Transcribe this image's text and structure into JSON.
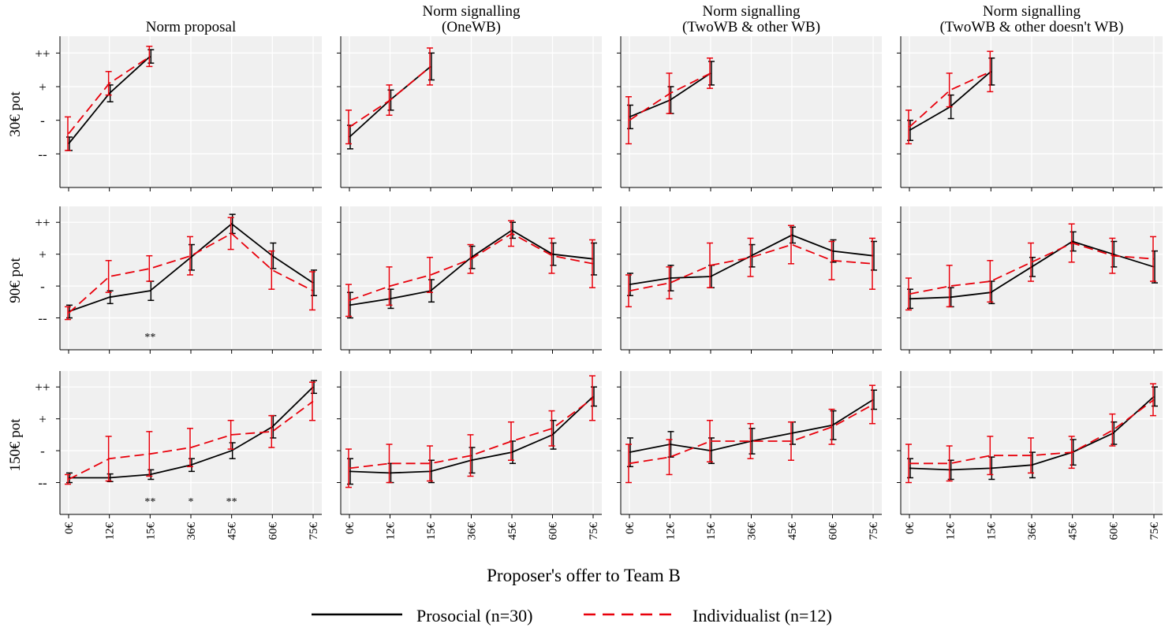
{
  "chart_data": {
    "type": "line",
    "x_categories": [
      "0€",
      "12€",
      "15€",
      "36€",
      "45€",
      "60€",
      "75€"
    ],
    "y_tick_labels": [
      "--",
      "-",
      "+",
      "++"
    ],
    "y_tick_values": [
      1,
      2,
      3,
      4
    ],
    "ylim": [
      0,
      4.5
    ],
    "xlabel": "Proposer's offer to Team B",
    "column_titles": [
      [
        "Norm proposal"
      ],
      [
        "Norm signalling",
        "(OneWB)"
      ],
      [
        "Norm signalling",
        "(TwoWB & other WB)"
      ],
      [
        "Norm signalling",
        "(TwoWB & other doesn't WB)"
      ]
    ],
    "row_labels": [
      "30€ pot",
      "90€ pot",
      "150€ pot"
    ],
    "grid": true,
    "legend_position": "bottom",
    "colors": {
      "Prosocial (n=30)": "#000000",
      "Individualist (n=12)": "#e8000b",
      "panel_bg": "#f0f0f0",
      "grid": "#ffffff"
    },
    "series": [
      {
        "name": "Prosocial (n=30)",
        "style": "solid"
      },
      {
        "name": "Individualist (n=12)",
        "style": "dashed"
      }
    ],
    "panels": [
      {
        "row": 0,
        "col": 0,
        "pro": [
          [
            1.3,
            0.2
          ],
          [
            2.8,
            0.25
          ],
          [
            3.9,
            0.2
          ]
        ],
        "ind": [
          [
            1.6,
            0.5
          ],
          [
            3.1,
            0.35
          ],
          [
            3.9,
            0.3
          ]
        ],
        "sig": []
      },
      {
        "row": 0,
        "col": 1,
        "pro": [
          [
            1.5,
            0.35
          ],
          [
            2.6,
            0.3
          ],
          [
            3.6,
            0.4
          ]
        ],
        "ind": [
          [
            1.8,
            0.5
          ],
          [
            2.6,
            0.45
          ],
          [
            3.6,
            0.55
          ]
        ],
        "sig": []
      },
      {
        "row": 0,
        "col": 2,
        "pro": [
          [
            2.1,
            0.35
          ],
          [
            2.6,
            0.4
          ],
          [
            3.4,
            0.35
          ]
        ],
        "ind": [
          [
            2.0,
            0.7
          ],
          [
            2.8,
            0.6
          ],
          [
            3.4,
            0.45
          ]
        ],
        "sig": []
      },
      {
        "row": 0,
        "col": 3,
        "pro": [
          [
            1.7,
            0.3
          ],
          [
            2.4,
            0.35
          ],
          [
            3.45,
            0.4
          ]
        ],
        "ind": [
          [
            1.8,
            0.5
          ],
          [
            2.9,
            0.5
          ],
          [
            3.45,
            0.6
          ]
        ],
        "sig": []
      },
      {
        "row": 1,
        "col": 0,
        "pro": [
          [
            1.2,
            0.2
          ],
          [
            1.65,
            0.2
          ],
          [
            1.85,
            0.3
          ],
          [
            2.9,
            0.4
          ],
          [
            3.95,
            0.3
          ],
          [
            2.95,
            0.4
          ],
          [
            2.1,
            0.4
          ]
        ],
        "ind": [
          [
            1.15,
            0.2
          ],
          [
            2.3,
            0.5
          ],
          [
            2.55,
            0.4
          ],
          [
            2.95,
            0.6
          ],
          [
            3.65,
            0.5
          ],
          [
            2.5,
            0.6
          ],
          [
            1.85,
            0.6
          ]
        ],
        "sig": [
          "",
          "",
          "**",
          "",
          "",
          "",
          ""
        ]
      },
      {
        "row": 1,
        "col": 1,
        "pro": [
          [
            1.4,
            0.4
          ],
          [
            1.6,
            0.3
          ],
          [
            1.85,
            0.35
          ],
          [
            2.9,
            0.35
          ],
          [
            3.75,
            0.25
          ],
          [
            3.0,
            0.35
          ],
          [
            2.85,
            0.5
          ]
        ],
        "ind": [
          [
            1.55,
            0.5
          ],
          [
            2.0,
            0.6
          ],
          [
            2.35,
            0.55
          ],
          [
            2.85,
            0.45
          ],
          [
            3.65,
            0.4
          ],
          [
            2.95,
            0.55
          ],
          [
            2.7,
            0.75
          ]
        ],
        "sig": []
      },
      {
        "row": 1,
        "col": 2,
        "pro": [
          [
            2.05,
            0.35
          ],
          [
            2.25,
            0.4
          ],
          [
            2.3,
            0.35
          ],
          [
            2.95,
            0.35
          ],
          [
            3.6,
            0.25
          ],
          [
            3.1,
            0.35
          ],
          [
            2.95,
            0.45
          ]
        ],
        "ind": [
          [
            1.85,
            0.5
          ],
          [
            2.1,
            0.5
          ],
          [
            2.65,
            0.7
          ],
          [
            2.9,
            0.6
          ],
          [
            3.3,
            0.6
          ],
          [
            2.8,
            0.6
          ],
          [
            2.7,
            0.8
          ]
        ],
        "sig": []
      },
      {
        "row": 1,
        "col": 3,
        "pro": [
          [
            1.6,
            0.3
          ],
          [
            1.65,
            0.3
          ],
          [
            1.8,
            0.35
          ],
          [
            2.6,
            0.3
          ],
          [
            3.4,
            0.3
          ],
          [
            3.0,
            0.4
          ],
          [
            2.6,
            0.5
          ]
        ],
        "ind": [
          [
            1.75,
            0.5
          ],
          [
            2.0,
            0.65
          ],
          [
            2.15,
            0.65
          ],
          [
            2.75,
            0.6
          ],
          [
            3.35,
            0.6
          ],
          [
            2.95,
            0.55
          ],
          [
            2.85,
            0.7
          ]
        ],
        "sig": []
      },
      {
        "row": 2,
        "col": 0,
        "pro": [
          [
            1.15,
            0.15
          ],
          [
            1.15,
            0.12
          ],
          [
            1.25,
            0.15
          ],
          [
            1.55,
            0.2
          ],
          [
            2.0,
            0.25
          ],
          [
            2.75,
            0.35
          ],
          [
            4.0,
            0.2
          ]
        ],
        "ind": [
          [
            1.1,
            0.15
          ],
          [
            1.75,
            0.7
          ],
          [
            1.9,
            0.7
          ],
          [
            2.1,
            0.6
          ],
          [
            2.5,
            0.45
          ],
          [
            2.6,
            0.5
          ],
          [
            3.55,
            0.6
          ]
        ],
        "sig": [
          "",
          "",
          "**",
          "*",
          "**",
          "",
          ""
        ]
      },
      {
        "row": 2,
        "col": 1,
        "pro": [
          [
            1.35,
            0.4
          ],
          [
            1.3,
            0.3
          ],
          [
            1.35,
            0.35
          ],
          [
            1.7,
            0.4
          ],
          [
            1.95,
            0.35
          ],
          [
            2.5,
            0.45
          ],
          [
            3.7,
            0.3
          ]
        ],
        "ind": [
          [
            1.45,
            0.6
          ],
          [
            1.6,
            0.6
          ],
          [
            1.6,
            0.55
          ],
          [
            1.85,
            0.65
          ],
          [
            2.3,
            0.6
          ],
          [
            2.7,
            0.55
          ],
          [
            3.65,
            0.7
          ]
        ],
        "sig": []
      },
      {
        "row": 2,
        "col": 2,
        "pro": [
          [
            1.95,
            0.45
          ],
          [
            2.2,
            0.4
          ],
          [
            2.0,
            0.4
          ],
          [
            2.3,
            0.4
          ],
          [
            2.55,
            0.35
          ],
          [
            2.8,
            0.45
          ],
          [
            3.6,
            0.3
          ]
        ],
        "ind": [
          [
            1.6,
            0.6
          ],
          [
            1.8,
            0.55
          ],
          [
            2.3,
            0.65
          ],
          [
            2.3,
            0.55
          ],
          [
            2.3,
            0.6
          ],
          [
            2.75,
            0.55
          ],
          [
            3.45,
            0.6
          ]
        ],
        "sig": []
      },
      {
        "row": 2,
        "col": 3,
        "pro": [
          [
            1.45,
            0.3
          ],
          [
            1.4,
            0.3
          ],
          [
            1.45,
            0.35
          ],
          [
            1.55,
            0.4
          ],
          [
            1.95,
            0.4
          ],
          [
            2.55,
            0.35
          ],
          [
            3.7,
            0.3
          ]
        ],
        "ind": [
          [
            1.6,
            0.6
          ],
          [
            1.6,
            0.55
          ],
          [
            1.85,
            0.6
          ],
          [
            1.85,
            0.55
          ],
          [
            1.95,
            0.5
          ],
          [
            2.65,
            0.5
          ],
          [
            3.6,
            0.5
          ]
        ],
        "sig": []
      }
    ]
  }
}
